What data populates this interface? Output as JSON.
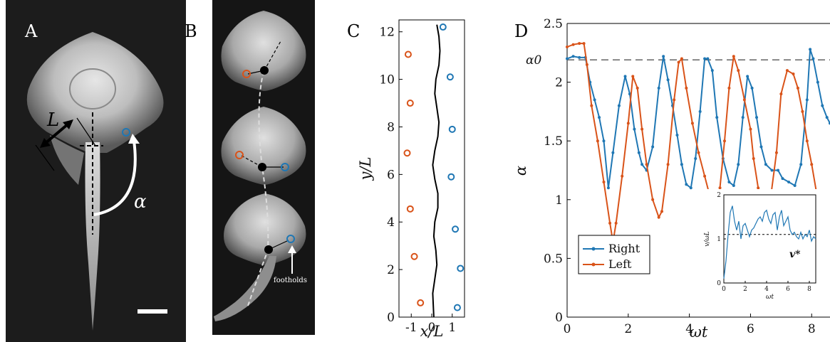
{
  "panels": {
    "A": {
      "letter": "A",
      "length_label": "L",
      "angle_label": "α"
    },
    "B": {
      "letter": "B",
      "footholds_label": "footholds"
    },
    "C": {
      "letter": "C"
    },
    "D": {
      "letter": "D"
    }
  },
  "colors": {
    "right": "#1f77b4",
    "left": "#d95319",
    "path": "#000000",
    "dashed": "#555555"
  },
  "chart_data": [
    {
      "type": "scatter",
      "panel": "C",
      "xlabel": "x/L",
      "ylabel": "y/L",
      "xlim": [
        -1.6,
        1.6
      ],
      "ylim": [
        0,
        12.5
      ],
      "xticks": [
        -1,
        0,
        1
      ],
      "yticks": [
        0,
        2,
        4,
        6,
        8,
        10,
        12
      ],
      "series": [
        {
          "key": "right",
          "points": [
            [
              0.55,
              12.2
            ],
            [
              0.9,
              10.1
            ],
            [
              1.0,
              7.9
            ],
            [
              0.95,
              5.9
            ],
            [
              1.15,
              3.7
            ],
            [
              1.4,
              2.05
            ],
            [
              1.25,
              0.4
            ]
          ]
        },
        {
          "key": "left",
          "points": [
            [
              -1.15,
              11.05
            ],
            [
              -1.05,
              9.0
            ],
            [
              -1.2,
              6.9
            ],
            [
              -1.05,
              4.55
            ],
            [
              -0.85,
              2.55
            ],
            [
              -0.55,
              0.6
            ]
          ]
        },
        {
          "key": "path",
          "points": [
            [
              0.25,
              12.3
            ],
            [
              0.35,
              11.8
            ],
            [
              0.4,
              11.2
            ],
            [
              0.35,
              10.6
            ],
            [
              0.2,
              10.0
            ],
            [
              0.15,
              9.4
            ],
            [
              0.25,
              8.8
            ],
            [
              0.35,
              8.2
            ],
            [
              0.3,
              7.6
            ],
            [
              0.15,
              7.0
            ],
            [
              0.05,
              6.4
            ],
            [
              0.15,
              5.8
            ],
            [
              0.3,
              5.2
            ],
            [
              0.3,
              4.6
            ],
            [
              0.15,
              4.0
            ],
            [
              0.1,
              3.4
            ],
            [
              0.2,
              2.8
            ],
            [
              0.25,
              2.2
            ],
            [
              0.15,
              1.6
            ],
            [
              0.05,
              1.0
            ],
            [
              0.08,
              0.4
            ],
            [
              0.1,
              0.0
            ]
          ]
        }
      ]
    },
    {
      "type": "line",
      "panel": "D",
      "xlabel": "ωt",
      "ylabel": "α",
      "xlim": [
        0,
        8.6
      ],
      "ylim": [
        0,
        2.5
      ],
      "xticks": [
        0,
        2,
        4,
        6,
        8
      ],
      "yticks": [
        0,
        0.5,
        1,
        1.5,
        2,
        2.5
      ],
      "reference": {
        "label": "α0",
        "value": 2.19
      },
      "legend": {
        "position": "bottom-left"
      },
      "series": [
        {
          "name": "Right",
          "key": "right",
          "x": [
            0,
            0.2,
            0.4,
            0.6,
            0.75,
            0.9,
            1.05,
            1.2,
            1.35,
            1.5,
            1.7,
            1.9,
            2.05,
            2.2,
            2.35,
            2.45,
            2.6,
            2.8,
            3.0,
            3.15,
            3.3,
            3.45,
            3.6,
            3.75,
            3.9,
            4.05,
            4.2,
            4.35,
            4.5,
            4.6,
            4.75,
            4.9,
            5.1,
            5.3,
            5.45,
            5.6,
            5.75,
            5.9,
            6.05,
            6.2,
            6.35,
            6.5,
            6.7,
            6.9,
            7.05,
            7.25,
            7.45,
            7.65,
            7.85,
            7.95,
            8.05,
            8.2,
            8.35,
            8.5,
            8.6
          ],
          "y": [
            2.2,
            2.22,
            2.21,
            2.21,
            2.0,
            1.85,
            1.7,
            1.5,
            1.1,
            1.4,
            1.8,
            2.05,
            1.9,
            1.6,
            1.4,
            1.3,
            1.25,
            1.45,
            1.95,
            2.22,
            2.02,
            1.8,
            1.55,
            1.3,
            1.13,
            1.1,
            1.35,
            1.75,
            2.2,
            2.2,
            2.1,
            1.7,
            1.35,
            1.15,
            1.12,
            1.3,
            1.7,
            2.05,
            1.95,
            1.7,
            1.45,
            1.3,
            1.25,
            1.25,
            1.18,
            1.15,
            1.12,
            1.3,
            1.85,
            2.28,
            2.2,
            2.0,
            1.8,
            1.7,
            1.65
          ]
        },
        {
          "name": "Left",
          "key": "left",
          "x": [
            0,
            0.2,
            0.4,
            0.55,
            0.65,
            0.8,
            1.0,
            1.2,
            1.4,
            1.5,
            1.6,
            1.8,
            2.0,
            2.15,
            2.3,
            2.45,
            2.6,
            2.8,
            3.0,
            3.1,
            3.3,
            3.5,
            3.65,
            3.75,
            3.9,
            4.1,
            4.3,
            4.5,
            4.7,
            4.85,
            5.0,
            5.15,
            5.3,
            5.45,
            5.6,
            5.8,
            6.0,
            6.1,
            6.25,
            6.45,
            6.65,
            6.85,
            7.0,
            7.2,
            7.4,
            7.55,
            7.7,
            7.85,
            8.0,
            8.2,
            8.35,
            8.5
          ],
          "y": [
            2.3,
            2.32,
            2.33,
            2.33,
            2.15,
            1.8,
            1.5,
            1.15,
            0.8,
            0.64,
            0.8,
            1.2,
            1.65,
            2.05,
            1.95,
            1.6,
            1.3,
            1.0,
            0.85,
            0.9,
            1.3,
            1.85,
            2.17,
            2.2,
            1.95,
            1.65,
            1.4,
            1.2,
            1.0,
            0.98,
            1.1,
            1.5,
            1.95,
            2.22,
            2.1,
            1.85,
            1.6,
            1.35,
            1.1,
            1.0,
            1.0,
            1.4,
            1.9,
            2.1,
            2.07,
            1.95,
            1.75,
            1.5,
            1.3,
            1.0,
            0.99,
            1.05
          ]
        }
      ]
    },
    {
      "type": "line",
      "panel": "D-inset",
      "xlabel": "ωt",
      "ylabel": "v/ωL",
      "xlim": [
        0,
        8.6
      ],
      "ylim": [
        0,
        2
      ],
      "xticks": [
        0,
        2,
        4,
        6,
        8
      ],
      "yticks": [
        0,
        1,
        2
      ],
      "reference": {
        "label": "v*",
        "value": 1.1
      },
      "series": [
        {
          "key": "right",
          "x": [
            0,
            0.2,
            0.4,
            0.6,
            0.8,
            1.0,
            1.2,
            1.4,
            1.6,
            1.8,
            2.0,
            2.2,
            2.4,
            2.6,
            2.8,
            3.0,
            3.2,
            3.4,
            3.6,
            3.8,
            4.0,
            4.2,
            4.4,
            4.6,
            4.8,
            5.0,
            5.2,
            5.4,
            5.6,
            5.8,
            6.0,
            6.2,
            6.4,
            6.6,
            6.8,
            7.0,
            7.2,
            7.4,
            7.6,
            7.8,
            8.0,
            8.2,
            8.4,
            8.6
          ],
          "y": [
            0.1,
            0.5,
            1.1,
            1.6,
            1.75,
            1.4,
            1.2,
            1.4,
            1.0,
            1.3,
            1.35,
            1.2,
            1.05,
            1.2,
            1.25,
            1.35,
            1.45,
            1.5,
            1.4,
            1.6,
            1.65,
            1.45,
            1.35,
            1.55,
            1.6,
            1.2,
            1.5,
            1.65,
            1.3,
            1.4,
            1.5,
            1.2,
            1.1,
            1.15,
            1.05,
            1.0,
            1.15,
            1.0,
            1.1,
            1.05,
            1.2,
            0.95,
            1.05,
            1.0
          ]
        }
      ]
    }
  ]
}
